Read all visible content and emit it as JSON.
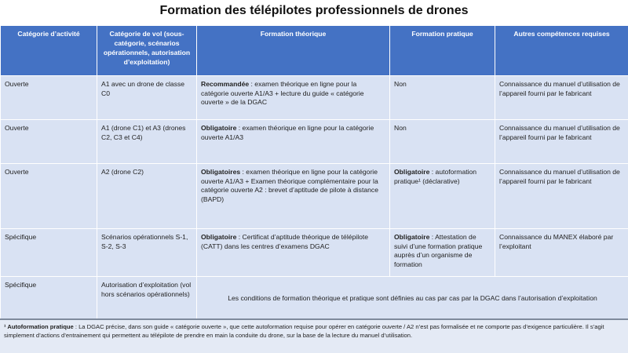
{
  "title": "Formation des télépilotes professionnels de drones",
  "headers": [
    "Catégorie d’activité",
    "Catégorie de vol (sous-catégorie, scénarios opérationnels, autorisation d’exploitation)",
    "Formation théorique",
    "Formation pratique",
    "Autres compétences requises"
  ],
  "rows": [
    {
      "activite": "Ouverte",
      "vol": "A1 avec un drone de classe C0",
      "theo_label": "Recommandée",
      "theo_text": " : examen théorique en ligne pour la catégorie ouverte A1/A3 + lecture du guide « catégorie ouverte » de la DGAC",
      "prat_label": "",
      "prat_text": "Non",
      "autres": "Connaissance du manuel d’utilisation de l’appareil fourni par le fabricant"
    },
    {
      "activite": "Ouverte",
      "vol": "A1 (drone C1) et A3 (drones C2, C3 et C4)",
      "theo_label": "Obligatoire",
      "theo_text": " : examen théorique en ligne pour la catégorie ouverte A1/A3",
      "prat_label": "",
      "prat_text": "Non",
      "autres": "Connaissance du manuel d’utilisation de l’appareil fourni par le fabricant"
    },
    {
      "activite": "Ouverte",
      "vol": "A2 (drone C2)",
      "theo_label": "Obligatoires",
      "theo_text": " : examen théorique en ligne pour la catégorie ouverte A1/A3 + Examen théorique complémentaire pour la catégorie ouverte A2 : brevet d’aptitude de pilote à distance (BAPD)",
      "prat_label": "Obligatoire",
      "prat_text": " : autoformation pratique¹ (déclarative)",
      "autres": "Connaissance du manuel d’utilisation de l’appareil fourni par le fabricant"
    },
    {
      "activite": "Spécifique",
      "vol": "Scénarios opérationnels S-1, S-2, S-3",
      "theo_label": "Obligatoire",
      "theo_text": " : Certificat d’aptitude théorique de télépilote (CATT) dans les centres d’examens DGAC",
      "prat_label": "Obligatoire",
      "prat_text": " : Attestation de suivi d’une formation pratique auprès d’un organisme de formation",
      "autres": "Connaissance du MANEX élaboré par l’exploitant"
    },
    {
      "activite": "Spécifique",
      "vol": "Autorisation d’exploitation (vol hors scénarios opérationnels)",
      "merged": "Les conditions de formation théorique et pratique sont définies au cas par cas par la DGAC dans l’autorisation d’exploitation"
    }
  ],
  "footnote": {
    "label": "¹ Autoformation pratique",
    "text": " : La DGAC précise, dans son guide « catégorie ouverte », que cette autoformation requise pour opérer en catégorie ouverte / A2  n’est pas formalisée et ne comporte pas d’exigence particulière. Il s’agit simplement d’actions d’entrainement qui permettent au télépilote de prendre en main la conduite du drone, sur la base de la lecture du manuel d’utilisation."
  },
  "colors": {
    "header": "#4472c4",
    "cell": "#d9e2f3"
  }
}
